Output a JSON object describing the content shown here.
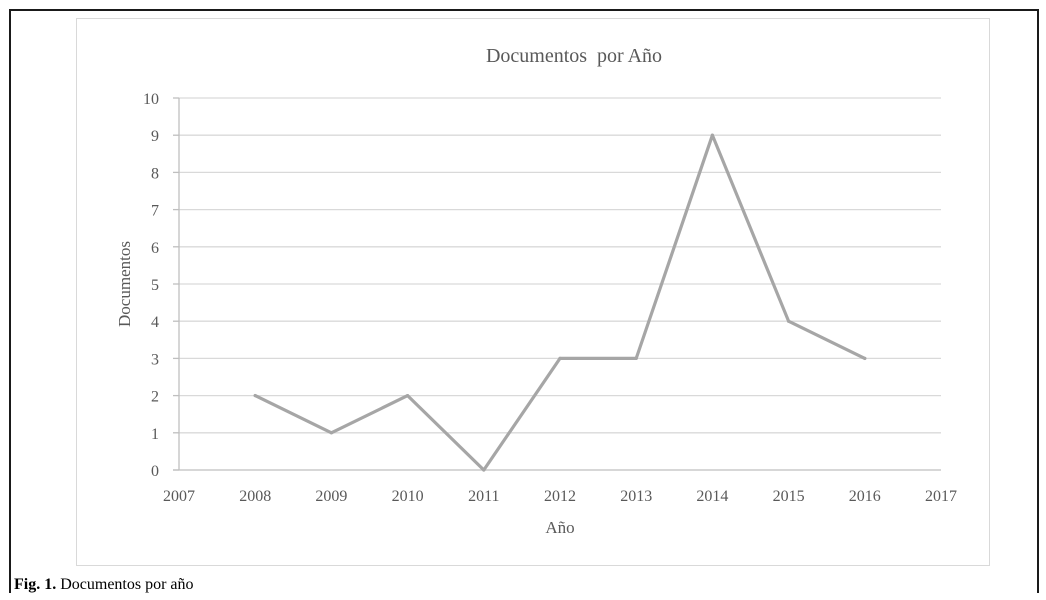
{
  "caption": {
    "label": "Fig. 1.",
    "text": "Documentos por año"
  },
  "chart_data": {
    "type": "line",
    "title": "Documentos  por Año",
    "xlabel": "Año",
    "ylabel": "Documentos",
    "xlim": [
      2007,
      2017
    ],
    "ylim": [
      0,
      10
    ],
    "xticks": [
      2007,
      2008,
      2009,
      2010,
      2011,
      2012,
      2013,
      2014,
      2015,
      2016,
      2017
    ],
    "yticks": [
      0,
      1,
      2,
      3,
      4,
      5,
      6,
      7,
      8,
      9,
      10
    ],
    "grid": true,
    "legend": "none",
    "colors": {
      "line": "#a6a6a6",
      "grid": "#d9d9d9",
      "axis": "#bfbfbf",
      "text": "#595959"
    },
    "series": [
      {
        "x": [
          2008,
          2009,
          2010,
          2011,
          2012,
          2013,
          2014,
          2015,
          2016
        ],
        "values": [
          2,
          1,
          2,
          0,
          3,
          3,
          9,
          4,
          3
        ]
      }
    ]
  }
}
